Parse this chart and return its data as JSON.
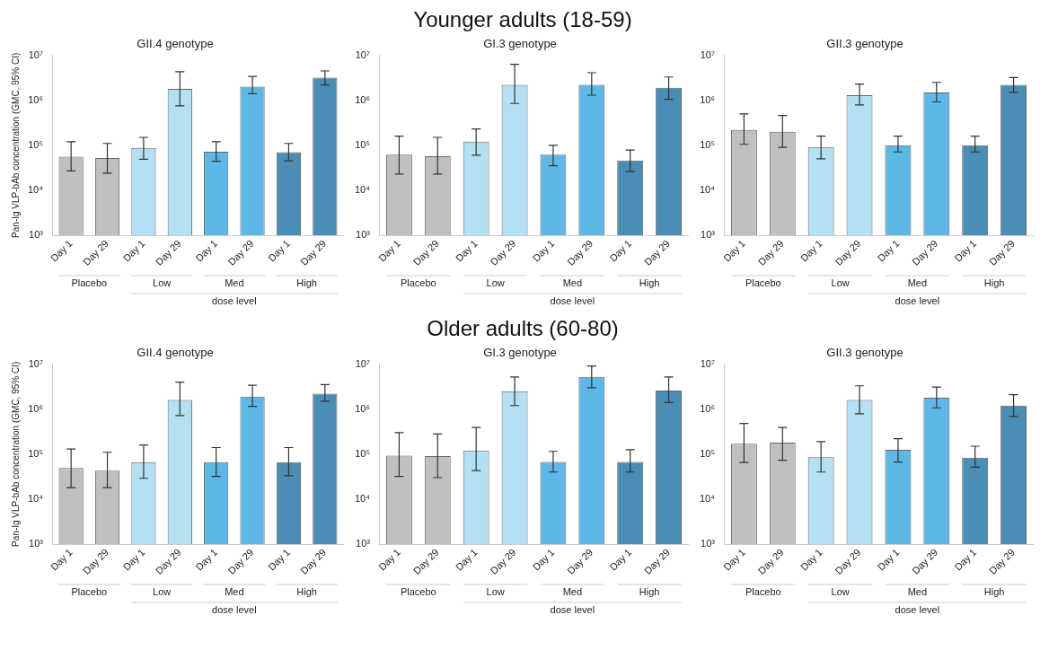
{
  "chart_data": [
    {
      "type": "bar",
      "title": "GII.4 genotype",
      "ylabel": "Pan-Ig VLP-bAb concentration (GMC, 95% CI)",
      "xlabel": "dose level",
      "categories": [
        "Day 1",
        "Day 29",
        "Day 1",
        "Day 29",
        "Day 1",
        "Day 29",
        "Day 1",
        "Day 29"
      ],
      "annotations": [
        "Placebo",
        "Low",
        "Med",
        "High"
      ],
      "log": true,
      "grid": false,
      "ylim": [
        1000,
        10000000
      ],
      "yticks": [
        {
          "value": 1000,
          "label": "10³"
        },
        {
          "value": 10000,
          "label": "10⁴"
        },
        {
          "value": 100000,
          "label": "10⁵"
        },
        {
          "value": 1000000,
          "label": "10⁶"
        },
        {
          "value": 10000000,
          "label": "10⁷"
        }
      ],
      "colors": [
        "#c0c0c0",
        "#c0c0c0",
        "#b3e0f2",
        "#b3e0f2",
        "#5db8e8",
        "#5db8e8",
        "#4a8db5",
        "#4a8db5"
      ],
      "values": [
        56000,
        52000,
        87000,
        1800000,
        72000,
        2000000,
        70000,
        3200000
      ],
      "errors": [
        [
          27000,
          120000
        ],
        [
          24000,
          110000
        ],
        [
          49000,
          150000
        ],
        [
          750000,
          4300000
        ],
        [
          44000,
          120000
        ],
        [
          1400000,
          3400000
        ],
        [
          45000,
          110000
        ],
        [
          2200000,
          4500000
        ]
      ]
    },
    {
      "type": "bar",
      "title": "GI.3 genotype",
      "subtitle": "Younger adults (18-59)",
      "xlabel": "dose level",
      "categories": [
        "Day 1",
        "Day 29",
        "Day 1",
        "Day 29",
        "Day 1",
        "Day 29",
        "Day 1",
        "Day 29"
      ],
      "annotations": [
        "Placebo",
        "Low",
        "Med",
        "High"
      ],
      "log": true,
      "grid": false,
      "ylim": [
        1000,
        10000000
      ],
      "yticks": [
        {
          "value": 1000,
          "label": "10³"
        },
        {
          "value": 10000,
          "label": "10⁴"
        },
        {
          "value": 100000,
          "label": "10⁵"
        },
        {
          "value": 1000000,
          "label": "10⁶"
        },
        {
          "value": 10000000,
          "label": "10⁷"
        }
      ],
      "colors": [
        "#c0c0c0",
        "#c0c0c0",
        "#b3e0f2",
        "#b3e0f2",
        "#5db8e8",
        "#5db8e8",
        "#4a8db5",
        "#4a8db5"
      ],
      "values": [
        62000,
        57000,
        120000,
        2200000,
        62000,
        2200000,
        46000,
        1900000
      ],
      "errors": [
        [
          23000,
          160000
        ],
        [
          23000,
          150000
        ],
        [
          60000,
          230000
        ],
        [
          850000,
          6300000
        ],
        [
          35000,
          100000
        ],
        [
          1300000,
          4100000
        ],
        [
          26000,
          78000
        ],
        [
          1050000,
          3300000
        ]
      ]
    },
    {
      "type": "bar",
      "title": "GII.3 genotype",
      "xlabel": "dose level",
      "categories": [
        "Day 1",
        "Day 29",
        "Day 1",
        "Day 29",
        "Day 1",
        "Day 29",
        "Day 1",
        "Day 29"
      ],
      "annotations": [
        "Placebo",
        "Low",
        "Med",
        "High"
      ],
      "log": true,
      "grid": false,
      "ylim": [
        1000,
        10000000
      ],
      "yticks": [
        {
          "value": 1000,
          "label": "10³"
        },
        {
          "value": 10000,
          "label": "10⁴"
        },
        {
          "value": 100000,
          "label": "10⁵"
        },
        {
          "value": 1000000,
          "label": "10⁶"
        },
        {
          "value": 10000000,
          "label": "10⁷"
        }
      ],
      "colors": [
        "#c0c0c0",
        "#c0c0c0",
        "#b3e0f2",
        "#b3e0f2",
        "#5db8e8",
        "#5db8e8",
        "#4a8db5",
        "#4a8db5"
      ],
      "values": [
        220000,
        200000,
        91000,
        1300000,
        100000,
        1500000,
        100000,
        2200000
      ],
      "errors": [
        [
          105000,
          500000
        ],
        [
          90000,
          460000
        ],
        [
          50000,
          160000
        ],
        [
          790000,
          2300000
        ],
        [
          71000,
          160000
        ],
        [
          920000,
          2500000
        ],
        [
          71000,
          160000
        ],
        [
          1500000,
          3200000
        ]
      ]
    },
    {
      "type": "bar",
      "title": "GII.4 genotype",
      "ylabel": "Pan-Ig VLP-bAb concentration (GMC, 95% CI)",
      "xlabel": "dose level",
      "categories": [
        "Day 1",
        "Day 29",
        "Day 1",
        "Day 29",
        "Day 1",
        "Day 29",
        "Day 1",
        "Day 29"
      ],
      "annotations": [
        "Placebo",
        "Low",
        "Med",
        "High"
      ],
      "log": true,
      "grid": false,
      "ylim": [
        1000,
        10000000
      ],
      "yticks": [
        {
          "value": 1000,
          "label": "10³"
        },
        {
          "value": 10000,
          "label": "10⁴"
        },
        {
          "value": 100000,
          "label": "10⁵"
        },
        {
          "value": 1000000,
          "label": "10⁶"
        },
        {
          "value": 10000000,
          "label": "10⁷"
        }
      ],
      "colors": [
        "#c0c0c0",
        "#c0c0c0",
        "#b3e0f2",
        "#b3e0f2",
        "#5db8e8",
        "#5db8e8",
        "#4a8db5",
        "#4a8db5"
      ],
      "values": [
        49000,
        43000,
        66000,
        1600000,
        66000,
        1900000,
        66000,
        2200000
      ],
      "errors": [
        [
          18000,
          130000
        ],
        [
          18000,
          110000
        ],
        [
          29000,
          160000
        ],
        [
          720000,
          4000000
        ],
        [
          32000,
          140000
        ],
        [
          1150000,
          3400000
        ],
        [
          33000,
          140000
        ],
        [
          1500000,
          3500000
        ]
      ]
    },
    {
      "type": "bar",
      "title": "GI.3 genotype",
      "subtitle": "Older adults (60-80)",
      "xlabel": "dose level",
      "categories": [
        "Day 1",
        "Day 29",
        "Day 1",
        "Day 29",
        "Day 1",
        "Day 29",
        "Day 1",
        "Day 29"
      ],
      "annotations": [
        "Placebo",
        "Low",
        "Med",
        "High"
      ],
      "log": true,
      "grid": false,
      "ylim": [
        1000,
        10000000
      ],
      "yticks": [
        {
          "value": 1000,
          "label": "10³"
        },
        {
          "value": 10000,
          "label": "10⁴"
        },
        {
          "value": 100000,
          "label": "10⁵"
        },
        {
          "value": 1000000,
          "label": "10⁶"
        },
        {
          "value": 10000000,
          "label": "10⁷"
        }
      ],
      "colors": [
        "#c0c0c0",
        "#c0c0c0",
        "#b3e0f2",
        "#b3e0f2",
        "#5db8e8",
        "#5db8e8",
        "#4a8db5",
        "#4a8db5"
      ],
      "values": [
        93000,
        90000,
        120000,
        2500000,
        67000,
        5200000,
        67000,
        2600000
      ],
      "errors": [
        [
          32000,
          300000
        ],
        [
          30000,
          280000
        ],
        [
          43000,
          390000
        ],
        [
          1200000,
          5200000
        ],
        [
          40000,
          115000
        ],
        [
          3000000,
          9100000
        ],
        [
          40000,
          125000
        ],
        [
          1400000,
          5200000
        ]
      ]
    },
    {
      "type": "bar",
      "title": "GII.3 genotype",
      "xlabel": "dose level",
      "categories": [
        "Day 1",
        "Day 29",
        "Day 1",
        "Day 29",
        "Day 1",
        "Day 29",
        "Day 1",
        "Day 29"
      ],
      "annotations": [
        "Placebo",
        "Low",
        "Med",
        "High"
      ],
      "log": true,
      "grid": false,
      "ylim": [
        1000,
        10000000
      ],
      "yticks": [
        {
          "value": 1000,
          "label": "10³"
        },
        {
          "value": 10000,
          "label": "10⁴"
        },
        {
          "value": 100000,
          "label": "10⁵"
        },
        {
          "value": 1000000,
          "label": "10⁶"
        },
        {
          "value": 10000000,
          "label": "10⁷"
        }
      ],
      "colors": [
        "#c0c0c0",
        "#c0c0c0",
        "#b3e0f2",
        "#b3e0f2",
        "#5db8e8",
        "#5db8e8",
        "#4a8db5",
        "#4a8db5"
      ],
      "values": [
        170000,
        180000,
        85000,
        1600000,
        125000,
        1800000,
        83000,
        1200000
      ],
      "errors": [
        [
          65000,
          480000
        ],
        [
          73000,
          390000
        ],
        [
          40000,
          190000
        ],
        [
          790000,
          3300000
        ],
        [
          67000,
          220000
        ],
        [
          1070000,
          3100000
        ],
        [
          51000,
          150000
        ],
        [
          690000,
          2100000
        ]
      ]
    }
  ]
}
